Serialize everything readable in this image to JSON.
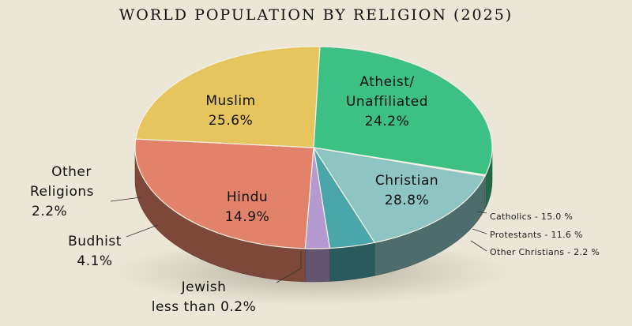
{
  "chart_data": {
    "type": "pie",
    "title": "WORLD POPULATION BY RELIGION (2025)",
    "slices": [
      {
        "name": "Christian",
        "value": 28.8,
        "value_label": "28.8%",
        "color": "#3cc083"
      },
      {
        "name": "Jewish",
        "value": 0.2,
        "value_label": "less than 0.2%",
        "color": "#e0e0e0"
      },
      {
        "name": "Hindu",
        "value": 14.9,
        "value_label": "14.9%",
        "color": "#8ec4c2"
      },
      {
        "name": "Budhist",
        "value": 4.1,
        "value_label": "4.1%",
        "color": "#4aa6a8"
      },
      {
        "name": "Other Religions",
        "value": 2.2,
        "value_label": "2.2%",
        "color": "#b49ace"
      },
      {
        "name": "Muslim",
        "value": 25.6,
        "value_label": "25.6%",
        "color": "#e3826a"
      },
      {
        "name": "Atheist/ Unaffiliated",
        "value": 24.2,
        "value_label": "24.2%",
        "color": "#e6c55f"
      }
    ],
    "christian_breakdown": [
      {
        "name": "Catholics",
        "value": 15.0,
        "text": "Catholics - 15.0 %"
      },
      {
        "name": "Protestants",
        "value": 11.6,
        "text": "Protestants - 11.6 %"
      },
      {
        "name": "Other Christians",
        "value": 2.2,
        "text": "Other Christians - 2.2 %"
      }
    ],
    "labels": {
      "muslim": [
        "Muslim",
        "25.6%"
      ],
      "atheist": [
        "Atheist/",
        "Unaffiliated",
        "24.2%"
      ],
      "christian": [
        "Christian",
        "28.8%"
      ],
      "hindu": [
        "Hindu",
        "14.9%"
      ],
      "other": [
        "Other",
        "Religions",
        "2.2%"
      ],
      "budhist": [
        "Budhist",
        "4.1%"
      ],
      "jewish": [
        "Jewish",
        "less than 0.2%"
      ]
    }
  }
}
